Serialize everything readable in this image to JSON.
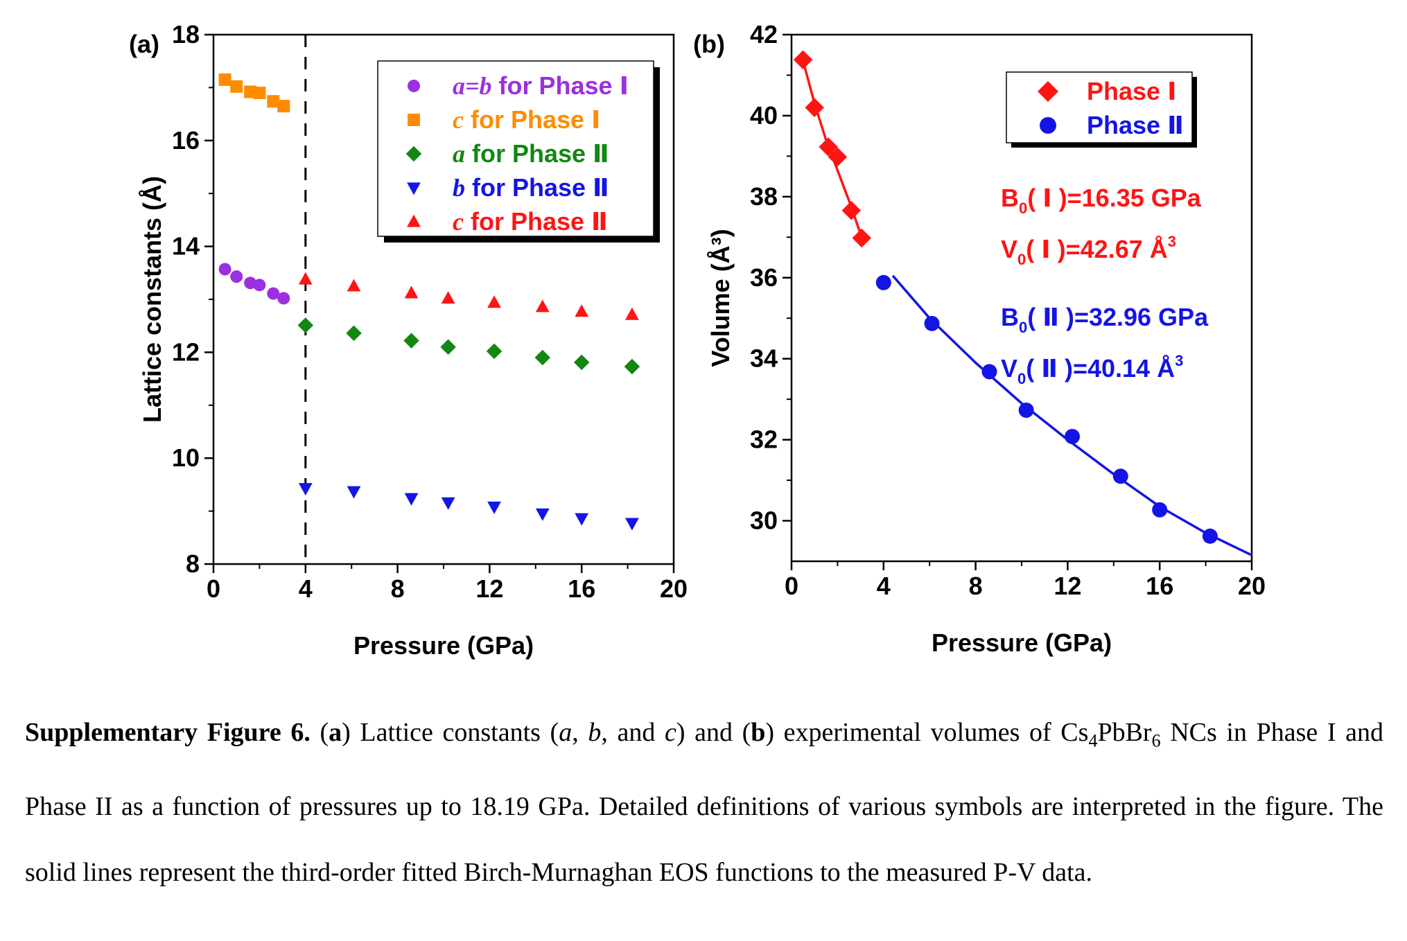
{
  "chart_data": [
    {
      "type": "scatter",
      "panel_label": "(a)",
      "xlabel": "Pressure (GPa)",
      "ylabel": "Lattice constants (Å)",
      "xlim": [
        0,
        20
      ],
      "ylim": [
        8,
        18
      ],
      "xticks": [
        0,
        4,
        8,
        12,
        16,
        20
      ],
      "yticks": [
        8,
        10,
        12,
        14,
        16,
        18
      ],
      "phase_boundary_x": 4,
      "legend_position": "top-right",
      "series": [
        {
          "name": "a=b for Phase Ⅰ",
          "color": "#9b30e0",
          "marker": "circle",
          "x": [
            0.5,
            1.0,
            1.6,
            2.0,
            2.6,
            3.05
          ],
          "y": [
            13.57,
            13.43,
            13.31,
            13.27,
            13.11,
            13.02
          ]
        },
        {
          "name": "c for Phase Ⅰ",
          "color": "#ff8c00",
          "marker": "square",
          "x": [
            0.5,
            1.0,
            1.6,
            2.0,
            2.6,
            3.05
          ],
          "y": [
            17.15,
            17.02,
            16.92,
            16.9,
            16.74,
            16.65
          ]
        },
        {
          "name": "a for Phase Ⅱ",
          "color": "#118811",
          "marker": "diamond",
          "x": [
            4.0,
            6.1,
            8.6,
            10.2,
            12.2,
            14.3,
            16.0,
            18.19
          ],
          "y": [
            12.51,
            12.36,
            12.22,
            12.1,
            12.02,
            11.9,
            11.81,
            11.73
          ]
        },
        {
          "name": "b for Phase Ⅱ",
          "color": "#1414e6",
          "marker": "triangle-down",
          "x": [
            4.0,
            6.1,
            8.6,
            10.2,
            12.2,
            14.3,
            16.0,
            18.19
          ],
          "y": [
            9.43,
            9.37,
            9.24,
            9.16,
            9.08,
            8.95,
            8.86,
            8.77
          ]
        },
        {
          "name": "c for Phase Ⅱ",
          "color": "#ff1414",
          "marker": "triangle-up",
          "x": [
            4.0,
            6.1,
            8.6,
            10.2,
            12.2,
            14.3,
            16.0,
            18.19
          ],
          "y": [
            13.38,
            13.25,
            13.12,
            13.02,
            12.94,
            12.86,
            12.77,
            12.71
          ]
        }
      ],
      "legend_labels": [
        {
          "italic": "a=b",
          "text": " for Phase Ⅰ"
        },
        {
          "italic": "c",
          "text": " for Phase Ⅰ"
        },
        {
          "italic": "a",
          "text": " for Phase Ⅱ"
        },
        {
          "italic": "b",
          "text": " for Phase Ⅱ"
        },
        {
          "italic": "c",
          "text": " for Phase Ⅱ"
        }
      ]
    },
    {
      "type": "scatter",
      "panel_label": "(b)",
      "xlabel": "Pressure (GPa)",
      "ylabel": "Volume (Å³)",
      "xlim": [
        0,
        20
      ],
      "ylim": [
        29,
        42
      ],
      "xticks": [
        0,
        4,
        8,
        12,
        16,
        20
      ],
      "yticks": [
        30,
        32,
        34,
        36,
        38,
        40,
        42
      ],
      "legend_position": "top-right",
      "series": [
        {
          "name": "Phase Ⅰ",
          "color": "#ff1414",
          "marker": "diamond",
          "x": [
            0.5,
            1.0,
            1.6,
            2.0,
            2.6,
            3.05
          ],
          "y": [
            41.38,
            40.2,
            39.23,
            38.98,
            37.66,
            36.98
          ]
        },
        {
          "name": "Phase Ⅱ",
          "color": "#1414e6",
          "marker": "circle",
          "x": [
            4.0,
            6.1,
            8.6,
            10.2,
            12.2,
            14.3,
            16.0,
            18.19
          ],
          "y": [
            35.88,
            34.87,
            33.68,
            32.73,
            32.08,
            31.1,
            30.27,
            29.62
          ]
        }
      ],
      "fits": [
        {
          "series": "Phase Ⅰ",
          "color": "#ff1414",
          "x_range": [
            0.5,
            3.05
          ],
          "x": [
            0.5,
            1.0,
            1.5,
            2.0,
            2.5,
            3.05
          ],
          "y": [
            41.36,
            40.3,
            39.4,
            38.65,
            37.9,
            37.0
          ]
        },
        {
          "series": "Phase Ⅱ",
          "color": "#1414e6",
          "x_range": [
            4.4,
            20
          ],
          "x": [
            4.4,
            6.0,
            8.0,
            10.0,
            12.0,
            14.0,
            16.0,
            18.0,
            20.0
          ],
          "y": [
            36.05,
            35.0,
            33.9,
            32.9,
            32.0,
            31.15,
            30.35,
            29.7,
            29.15
          ]
        }
      ],
      "annotations": [
        {
          "color": "#ff1414",
          "base": "B",
          "sub": "0",
          "rest": "( Ⅰ )=16.35 GPa",
          "sup": ""
        },
        {
          "color": "#ff1414",
          "base": "V",
          "sub": "0",
          "rest": "( Ⅰ )=42.67 Å",
          "sup": "3"
        },
        {
          "color": "#1414e6",
          "base": "B",
          "sub": "0",
          "rest": "( Ⅱ )=32.96 GPa",
          "sup": ""
        },
        {
          "color": "#1414e6",
          "base": "V",
          "sub": "0",
          "rest": "( Ⅱ )=40.14 Å",
          "sup": "3"
        }
      ]
    }
  ],
  "caption": {
    "title": "Supplementary Figure 6.",
    "text_html": "(<b>a</b>) Lattice constants (<i>a</i>, <i>b</i>, and <i>c</i>) and (<b>b</b>) experimental volumes of Cs<sub style=\"font-size:26px\">4</sub>PbBr<sub style=\"font-size:26px\">6</sub> NCs in Phase I and Phase II as a function of pressures up to 18.19 GPa. Detailed definitions of various symbols are interpreted in the figure. The solid lines represent the third-order fitted Birch-Murnaghan EOS functions to the measured P-V data."
  }
}
